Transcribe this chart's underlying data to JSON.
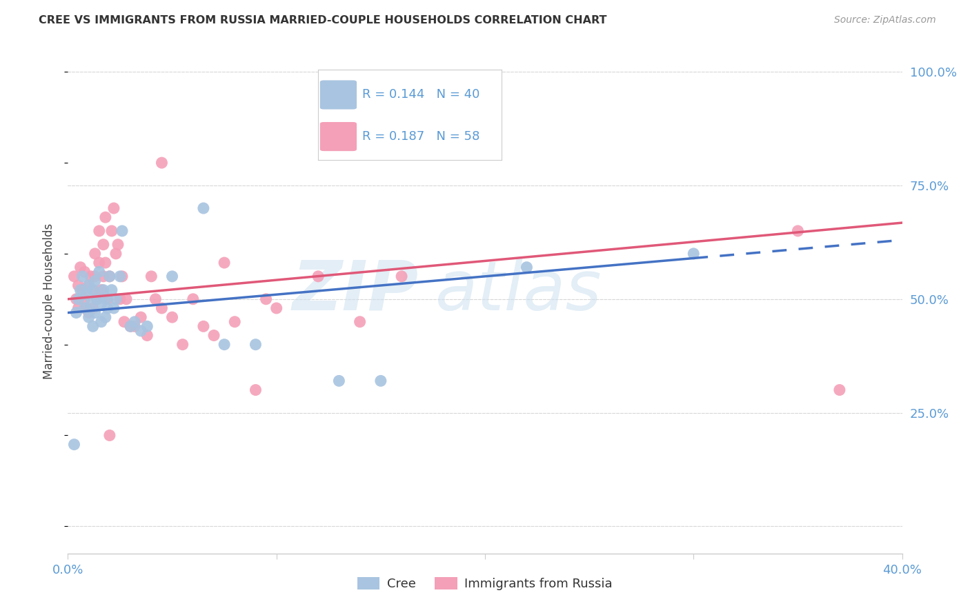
{
  "title": "CREE VS IMMIGRANTS FROM RUSSIA MARRIED-COUPLE HOUSEHOLDS CORRELATION CHART",
  "source": "Source: ZipAtlas.com",
  "ylabel": "Married-couple Households",
  "xmin": 0.0,
  "xmax": 0.4,
  "ymin": 0.0,
  "ymax": 1.05,
  "cree_color": "#a8c4e0",
  "russia_color": "#f4a0b8",
  "cree_line_color": "#4472c4",
  "russia_line_color": "#e05878",
  "legend_R_cree": "0.144",
  "legend_N_cree": "40",
  "legend_R_russia": "0.187",
  "legend_N_russia": "58",
  "cree_x": [
    0.003,
    0.004,
    0.005,
    0.006,
    0.007,
    0.008,
    0.009,
    0.01,
    0.01,
    0.011,
    0.012,
    0.012,
    0.013,
    0.013,
    0.014,
    0.015,
    0.016,
    0.016,
    0.017,
    0.018,
    0.018,
    0.019,
    0.02,
    0.021,
    0.022,
    0.023,
    0.025,
    0.026,
    0.03,
    0.032,
    0.035,
    0.038,
    0.05,
    0.065,
    0.075,
    0.09,
    0.13,
    0.15,
    0.22,
    0.3
  ],
  "cree_y": [
    0.18,
    0.47,
    0.5,
    0.52,
    0.55,
    0.48,
    0.51,
    0.46,
    0.53,
    0.49,
    0.52,
    0.44,
    0.47,
    0.54,
    0.5,
    0.56,
    0.49,
    0.45,
    0.52,
    0.5,
    0.46,
    0.48,
    0.55,
    0.52,
    0.48,
    0.5,
    0.55,
    0.65,
    0.44,
    0.45,
    0.43,
    0.44,
    0.55,
    0.7,
    0.4,
    0.4,
    0.32,
    0.32,
    0.57,
    0.6
  ],
  "russia_x": [
    0.003,
    0.004,
    0.005,
    0.005,
    0.006,
    0.007,
    0.008,
    0.008,
    0.009,
    0.01,
    0.01,
    0.011,
    0.012,
    0.012,
    0.013,
    0.013,
    0.014,
    0.015,
    0.015,
    0.016,
    0.017,
    0.017,
    0.018,
    0.018,
    0.019,
    0.02,
    0.021,
    0.022,
    0.023,
    0.024,
    0.025,
    0.026,
    0.027,
    0.028,
    0.03,
    0.032,
    0.035,
    0.038,
    0.04,
    0.042,
    0.045,
    0.05,
    0.055,
    0.06,
    0.065,
    0.07,
    0.075,
    0.08,
    0.09,
    0.095,
    0.1,
    0.12,
    0.14,
    0.16,
    0.02,
    0.045,
    0.35,
    0.37
  ],
  "russia_y": [
    0.55,
    0.5,
    0.53,
    0.48,
    0.57,
    0.52,
    0.56,
    0.5,
    0.48,
    0.53,
    0.47,
    0.55,
    0.52,
    0.48,
    0.6,
    0.55,
    0.5,
    0.65,
    0.58,
    0.52,
    0.62,
    0.55,
    0.68,
    0.58,
    0.5,
    0.55,
    0.65,
    0.7,
    0.6,
    0.62,
    0.5,
    0.55,
    0.45,
    0.5,
    0.44,
    0.44,
    0.46,
    0.42,
    0.55,
    0.5,
    0.48,
    0.46,
    0.4,
    0.5,
    0.44,
    0.42,
    0.58,
    0.45,
    0.3,
    0.5,
    0.48,
    0.55,
    0.45,
    0.55,
    0.2,
    0.8,
    0.65,
    0.3
  ],
  "watermark_1": "ZIP",
  "watermark_2": "atlas",
  "background_color": "#ffffff",
  "grid_color": "#d8d8d8",
  "tick_label_color": "#5b9bd5",
  "ylabel_color": "#444444",
  "title_color": "#333333"
}
